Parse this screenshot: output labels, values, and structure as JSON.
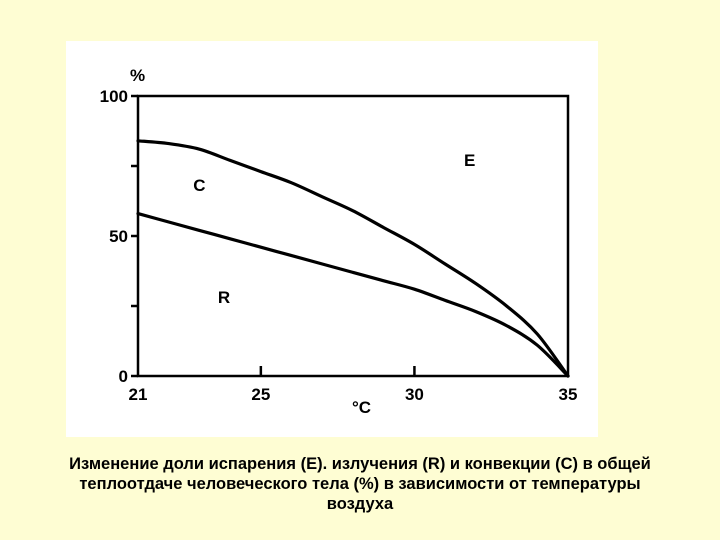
{
  "chart_data": {
    "type": "line",
    "x_unit_label": "°C",
    "y_unit_label": "%",
    "xlim": [
      21,
      35
    ],
    "ylim": [
      0,
      100
    ],
    "x_ticks": [
      {
        "value": 21,
        "label": "21"
      },
      {
        "value": 25,
        "label": "25"
      },
      {
        "value": 30,
        "label": "30"
      },
      {
        "value": 35,
        "label": "35"
      }
    ],
    "x_minor_ticks": [],
    "y_ticks": [
      {
        "value": 0,
        "label": "0"
      },
      {
        "value": 50,
        "label": "50"
      },
      {
        "value": 100,
        "label": "100"
      }
    ],
    "y_minor_ticks": [
      25,
      75
    ],
    "grid": false,
    "series": [
      {
        "x": [
          21,
          22,
          23,
          24,
          25,
          26,
          27,
          28,
          29,
          30,
          31,
          32,
          33,
          34,
          35
        ],
        "y": [
          84,
          83,
          81,
          77,
          73,
          69,
          64,
          59,
          53,
          47,
          40,
          33,
          25,
          15,
          0
        ],
        "color": "#000000"
      },
      {
        "x": [
          21,
          22,
          23,
          24,
          25,
          26,
          27,
          28,
          29,
          30,
          31,
          32,
          33,
          34,
          35
        ],
        "y": [
          58,
          55,
          52,
          49,
          46,
          43,
          40,
          37,
          34,
          31,
          27,
          23,
          18,
          11,
          0
        ],
        "color": "#000000"
      }
    ],
    "region_labels": [
      {
        "text": "E",
        "x": 31.8,
        "y": 75
      },
      {
        "text": "C",
        "x": 23,
        "y": 66
      },
      {
        "text": "R",
        "x": 23.8,
        "y": 26
      }
    ]
  },
  "caption": {
    "line1": "Изменение доли испарения (E). излучения (R) и конвекции (C) в общей",
    "line2": "теплоотдаче человеческого тела (%) в зависимости от температуры",
    "line3": "воздуха"
  }
}
